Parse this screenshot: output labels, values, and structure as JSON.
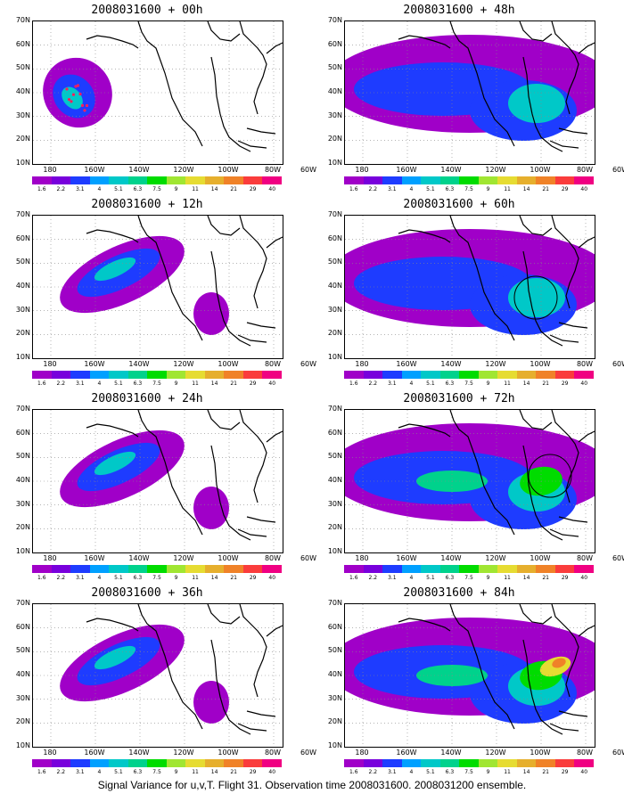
{
  "panels": [
    {
      "title": "2008031600 + 00h",
      "level": 1
    },
    {
      "title": "2008031600 + 48h",
      "level": 3
    },
    {
      "title": "2008031600 + 12h",
      "level": 2
    },
    {
      "title": "2008031600 + 60h",
      "level": 3
    },
    {
      "title": "2008031600 + 24h",
      "level": 2
    },
    {
      "title": "2008031600 + 72h",
      "level": 4
    },
    {
      "title": "2008031600 + 36h",
      "level": 2
    },
    {
      "title": "2008031600 + 84h",
      "level": 5
    }
  ],
  "lat_labels": [
    "70N",
    "60N",
    "50N",
    "40N",
    "30N",
    "20N",
    "10N"
  ],
  "lon_labels": [
    "180",
    "160W",
    "140W",
    "120W",
    "100W",
    "80W",
    "60W"
  ],
  "colorbar": {
    "colors": [
      "#a000c8",
      "#7800dc",
      "#1e3cff",
      "#00a0ff",
      "#00c8c8",
      "#00d28c",
      "#00dc00",
      "#a0e632",
      "#e6dc32",
      "#e6af2d",
      "#f08228",
      "#fa3c3c",
      "#f00082"
    ],
    "labels": [
      "1.6",
      "2.2",
      "3.1",
      "4",
      "5.1",
      "6.3",
      "7.5",
      "9",
      "11",
      "14",
      "21",
      "29",
      "40"
    ]
  },
  "footer": "Signal Variance for u,v,T. Flight 31. Observation time 2008031600. 2008031200 ensemble."
}
